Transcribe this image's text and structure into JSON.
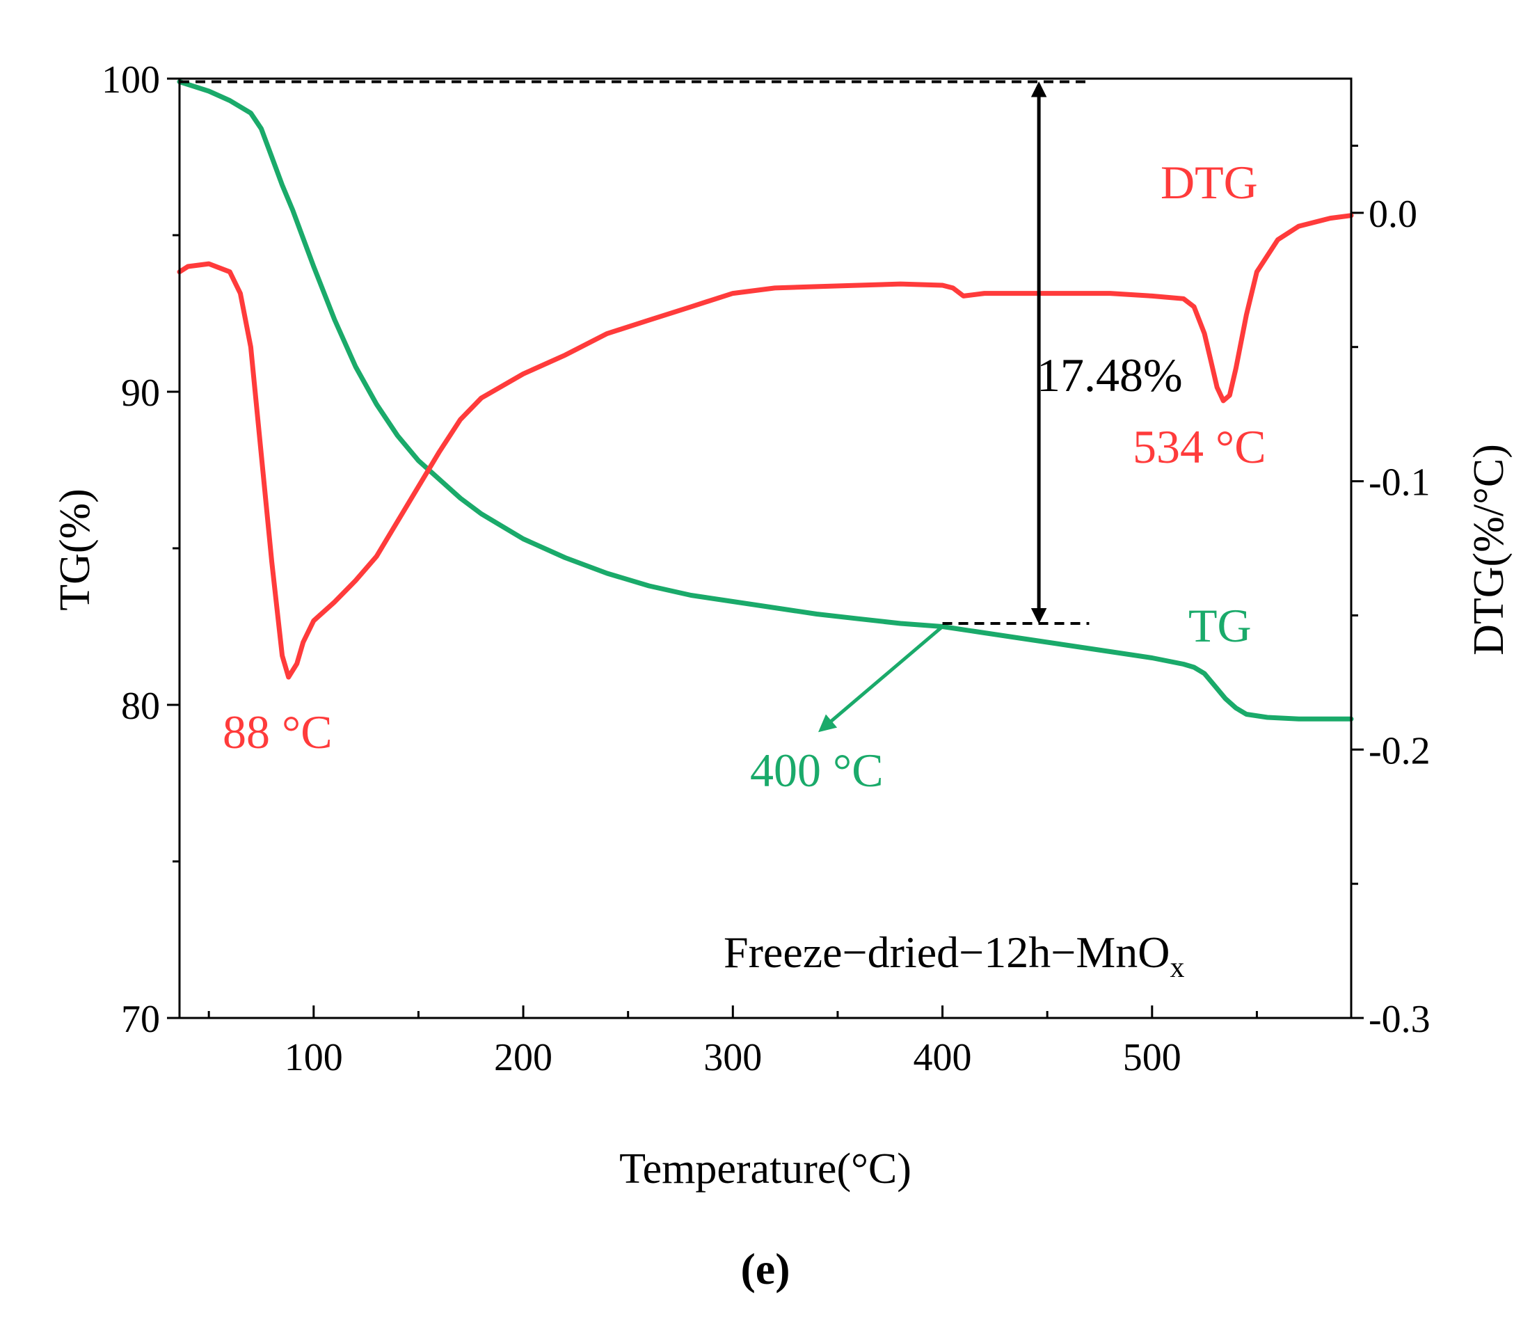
{
  "panel_label": "(e)",
  "chart_data": {
    "type": "line",
    "x_axis": {
      "label": "Temperature(°C)",
      "range": [
        36,
        595
      ],
      "ticks": [
        100,
        200,
        300,
        400,
        500
      ],
      "tick_labels": [
        "100",
        "200",
        "300",
        "400",
        "500"
      ],
      "minor_ticks": [
        50,
        150,
        250,
        350,
        450,
        550
      ]
    },
    "y_axis_left": {
      "label": "TG(%)",
      "range": [
        70,
        100
      ],
      "ticks": [
        70,
        80,
        90,
        100
      ],
      "tick_labels": [
        "70",
        "80",
        "90",
        "100"
      ],
      "minor_ticks": [
        75,
        85,
        95
      ]
    },
    "y_axis_right": {
      "label": "DTG(%/°C)",
      "range": [
        -0.3,
        0.05
      ],
      "ticks": [
        0.0,
        -0.1,
        -0.2,
        -0.3
      ],
      "tick_labels": [
        "0.0",
        "-0.1",
        "-0.2",
        "-0.3"
      ],
      "minor_ticks": [
        0.025,
        -0.05,
        -0.15,
        -0.25
      ]
    },
    "series": [
      {
        "name": "TG",
        "axis": "left",
        "color": "#1aaa6a",
        "points": [
          [
            36,
            99.9
          ],
          [
            50,
            99.6
          ],
          [
            60,
            99.3
          ],
          [
            70,
            98.9
          ],
          [
            75,
            98.4
          ],
          [
            80,
            97.5
          ],
          [
            85,
            96.6
          ],
          [
            90,
            95.8
          ],
          [
            95,
            94.9
          ],
          [
            100,
            94.0
          ],
          [
            110,
            92.3
          ],
          [
            120,
            90.8
          ],
          [
            130,
            89.6
          ],
          [
            140,
            88.6
          ],
          [
            150,
            87.8
          ],
          [
            160,
            87.2
          ],
          [
            170,
            86.6
          ],
          [
            180,
            86.1
          ],
          [
            200,
            85.3
          ],
          [
            220,
            84.7
          ],
          [
            240,
            84.2
          ],
          [
            260,
            83.8
          ],
          [
            280,
            83.5
          ],
          [
            300,
            83.3
          ],
          [
            320,
            83.1
          ],
          [
            340,
            82.9
          ],
          [
            360,
            82.75
          ],
          [
            380,
            82.6
          ],
          [
            400,
            82.5
          ],
          [
            420,
            82.3
          ],
          [
            440,
            82.1
          ],
          [
            460,
            81.9
          ],
          [
            480,
            81.7
          ],
          [
            500,
            81.5
          ],
          [
            515,
            81.3
          ],
          [
            520,
            81.2
          ],
          [
            525,
            81.0
          ],
          [
            530,
            80.6
          ],
          [
            535,
            80.2
          ],
          [
            540,
            79.9
          ],
          [
            545,
            79.7
          ],
          [
            555,
            79.6
          ],
          [
            570,
            79.55
          ],
          [
            595,
            79.55
          ]
        ]
      },
      {
        "name": "DTG",
        "axis": "right",
        "color": "#ff3b3b",
        "points": [
          [
            36,
            -0.022
          ],
          [
            40,
            -0.02
          ],
          [
            50,
            -0.019
          ],
          [
            60,
            -0.022
          ],
          [
            65,
            -0.03
          ],
          [
            70,
            -0.05
          ],
          [
            75,
            -0.09
          ],
          [
            80,
            -0.13
          ],
          [
            85,
            -0.165
          ],
          [
            88,
            -0.173
          ],
          [
            92,
            -0.168
          ],
          [
            95,
            -0.16
          ],
          [
            100,
            -0.152
          ],
          [
            110,
            -0.145
          ],
          [
            120,
            -0.137
          ],
          [
            130,
            -0.128
          ],
          [
            140,
            -0.115
          ],
          [
            150,
            -0.102
          ],
          [
            160,
            -0.089
          ],
          [
            170,
            -0.077
          ],
          [
            180,
            -0.069
          ],
          [
            200,
            -0.06
          ],
          [
            220,
            -0.053
          ],
          [
            240,
            -0.045
          ],
          [
            260,
            -0.04
          ],
          [
            280,
            -0.035
          ],
          [
            300,
            -0.03
          ],
          [
            320,
            -0.028
          ],
          [
            340,
            -0.0275
          ],
          [
            360,
            -0.027
          ],
          [
            380,
            -0.0265
          ],
          [
            400,
            -0.027
          ],
          [
            405,
            -0.028
          ],
          [
            410,
            -0.031
          ],
          [
            420,
            -0.03
          ],
          [
            440,
            -0.03
          ],
          [
            460,
            -0.03
          ],
          [
            480,
            -0.03
          ],
          [
            500,
            -0.031
          ],
          [
            515,
            -0.032
          ],
          [
            520,
            -0.035
          ],
          [
            525,
            -0.045
          ],
          [
            528,
            -0.055
          ],
          [
            531,
            -0.065
          ],
          [
            534,
            -0.07
          ],
          [
            537,
            -0.068
          ],
          [
            540,
            -0.058
          ],
          [
            545,
            -0.038
          ],
          [
            550,
            -0.022
          ],
          [
            560,
            -0.01
          ],
          [
            570,
            -0.005
          ],
          [
            585,
            -0.002
          ],
          [
            595,
            -0.001
          ]
        ]
      }
    ],
    "annotations": {
      "dtg_label": "DTG",
      "tg_label": "TG",
      "peak1_label": "88 °C",
      "peak2_label": "534 °C",
      "point_400_label": "400 °C",
      "mass_loss_label": "17.48%",
      "sample_name": "Freeze−dried−12h−MnO",
      "sample_subscript": "x"
    },
    "mass_loss": {
      "x": 446,
      "y_top": 99.9,
      "y_bottom": 82.6,
      "value_percent": 17.48
    }
  }
}
